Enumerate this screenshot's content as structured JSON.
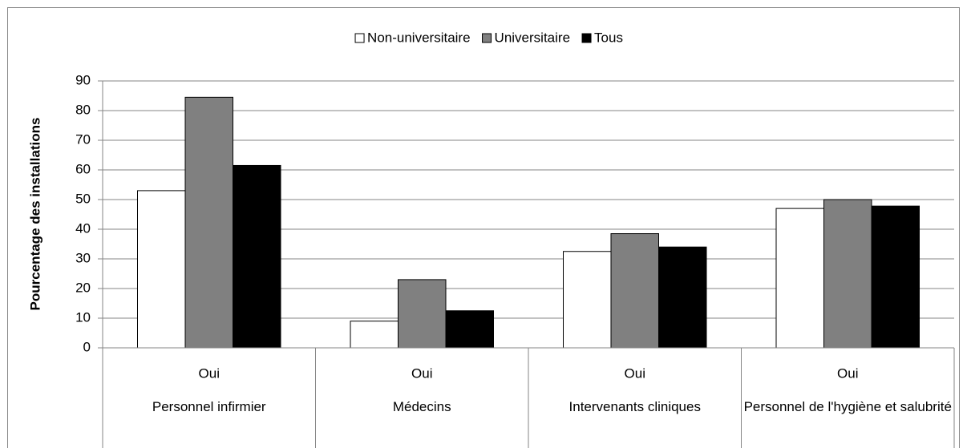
{
  "chart_data": {
    "type": "bar",
    "y_label": "Pourcentage des installations",
    "categories": [
      "Oui",
      "Oui",
      "Oui",
      "Oui"
    ],
    "groups": [
      "Personnel infirmier",
      "Médecins",
      "Intervenants cliniques",
      "Personnel de l'hygiène et salubrité"
    ],
    "series": [
      {
        "name": "Non-universitaire",
        "color": "#ffffff",
        "values": [
          53,
          9,
          32.5,
          47
        ]
      },
      {
        "name": "Universitaire",
        "color": "#808080",
        "values": [
          84.5,
          23,
          38.5,
          50
        ]
      },
      {
        "name": "Tous",
        "color": "#000000",
        "values": [
          61.5,
          12.5,
          34,
          47.8
        ]
      }
    ],
    "ylim": [
      0,
      90
    ],
    "yticks": [
      0,
      10,
      20,
      30,
      40,
      50,
      60,
      70,
      80,
      90
    ],
    "grid": true,
    "legend": "top"
  }
}
